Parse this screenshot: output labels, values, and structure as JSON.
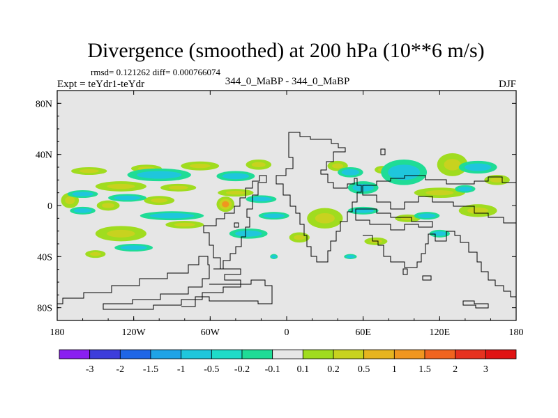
{
  "chart_data": {
    "type": "heatmap",
    "title": "Divergence (smoothed) at 200 hPa (10**6 m/s)",
    "stats": "rmsd= 0.121262 diff= 0.000766074",
    "experiment": "Expt = teYdr1-teYdr",
    "case": "344_0_MaBP - 344_0_MaBP",
    "season": "DJF",
    "x_range": [
      -180,
      180
    ],
    "y_range": [
      -90,
      90
    ],
    "x_ticks": [
      {
        "value": -180,
        "label": "180"
      },
      {
        "value": -120,
        "label": "120W"
      },
      {
        "value": -60,
        "label": "60W"
      },
      {
        "value": 0,
        "label": "0"
      },
      {
        "value": 60,
        "label": "60E"
      },
      {
        "value": 120,
        "label": "120E"
      },
      {
        "value": 180,
        "label": "180"
      }
    ],
    "y_ticks": [
      {
        "value": 80,
        "label": "80N"
      },
      {
        "value": 40,
        "label": "40N"
      },
      {
        "value": 0,
        "label": "0"
      },
      {
        "value": -40,
        "label": "40S"
      },
      {
        "value": -80,
        "label": "80S"
      }
    ],
    "colorbar": {
      "levels": [
        "-3",
        "-2",
        "-1.5",
        "-1",
        "-0.5",
        "-0.2",
        "-0.1",
        "0.1",
        "0.2",
        "0.5",
        "1",
        "1.5",
        "2",
        "3"
      ],
      "colors": [
        "#8a1ff0",
        "#3d3ddb",
        "#1f66e6",
        "#1fa3e6",
        "#1fc6dc",
        "#1fdcc8",
        "#1fdc96",
        "#e6e6e6",
        "#a0dc1f",
        "#c8d21f",
        "#e6b41f",
        "#f0961f",
        "#f0641f",
        "#e6321f",
        "#e01414"
      ]
    },
    "features": [
      {
        "lon": -155,
        "lat": 27,
        "rx": 14,
        "ry": 3,
        "level": "positive"
      },
      {
        "lon": -110,
        "lat": 29,
        "rx": 12,
        "ry": 3,
        "level": "positive"
      },
      {
        "lon": -68,
        "lat": 31,
        "rx": 15,
        "ry": 3.5,
        "level": "positive"
      },
      {
        "lon": -22,
        "lat": 32,
        "rx": 10,
        "ry": 4,
        "level": "positive"
      },
      {
        "lon": 40,
        "lat": 31,
        "rx": 8,
        "ry": 4,
        "level": "positive"
      },
      {
        "lon": 75,
        "lat": 28,
        "rx": 6,
        "ry": 3,
        "level": "positive"
      },
      {
        "lon": 130,
        "lat": 32,
        "rx": 12,
        "ry": 9,
        "level": "positive"
      },
      {
        "lon": 165,
        "lat": 20,
        "rx": 10,
        "ry": 4,
        "level": "positive"
      },
      {
        "lon": -130,
        "lat": 15,
        "rx": 20,
        "ry": 4,
        "level": "positive"
      },
      {
        "lon": -85,
        "lat": 14,
        "rx": 14,
        "ry": 3,
        "level": "positive"
      },
      {
        "lon": -40,
        "lat": 10,
        "rx": 14,
        "ry": 3,
        "level": "positive"
      },
      {
        "lon": 120,
        "lat": 10,
        "rx": 20,
        "ry": 4,
        "level": "positive"
      },
      {
        "lon": -170,
        "lat": 4,
        "rx": 7,
        "ry": 6,
        "level": "positive"
      },
      {
        "lon": -140,
        "lat": 0,
        "rx": 9,
        "ry": 4,
        "level": "positive"
      },
      {
        "lon": -100,
        "lat": 4,
        "rx": 12,
        "ry": 3.5,
        "level": "positive"
      },
      {
        "lon": -48,
        "lat": 1,
        "rx": 7,
        "ry": 6,
        "level": "strong"
      },
      {
        "lon": 30,
        "lat": -10,
        "rx": 14,
        "ry": 8,
        "level": "positive"
      },
      {
        "lon": 95,
        "lat": -10,
        "rx": 10,
        "ry": 3,
        "level": "positive"
      },
      {
        "lon": 150,
        "lat": -4,
        "rx": 15,
        "ry": 5,
        "level": "positive"
      },
      {
        "lon": -130,
        "lat": -22,
        "rx": 20,
        "ry": 6,
        "level": "positive"
      },
      {
        "lon": -80,
        "lat": -15,
        "rx": 15,
        "ry": 3,
        "level": "positive"
      },
      {
        "lon": 10,
        "lat": -25,
        "rx": 8,
        "ry": 4,
        "level": "positive"
      },
      {
        "lon": 70,
        "lat": -28,
        "rx": 9,
        "ry": 3,
        "level": "positive"
      },
      {
        "lon": -150,
        "lat": -38,
        "rx": 8,
        "ry": 3,
        "level": "positive"
      },
      {
        "lon": -100,
        "lat": 24,
        "rx": 25,
        "ry": 5,
        "level": "negative"
      },
      {
        "lon": -40,
        "lat": 23,
        "rx": 15,
        "ry": 4,
        "level": "negative"
      },
      {
        "lon": 50,
        "lat": 26,
        "rx": 10,
        "ry": 4,
        "level": "negative"
      },
      {
        "lon": 92,
        "lat": 26,
        "rx": 18,
        "ry": 10,
        "level": "negative"
      },
      {
        "lon": 150,
        "lat": 30,
        "rx": 15,
        "ry": 5,
        "level": "negative"
      },
      {
        "lon": -160,
        "lat": 9,
        "rx": 12,
        "ry": 3,
        "level": "negative"
      },
      {
        "lon": -125,
        "lat": 6,
        "rx": 15,
        "ry": 3,
        "level": "negative"
      },
      {
        "lon": -20,
        "lat": 5,
        "rx": 12,
        "ry": 3,
        "level": "negative"
      },
      {
        "lon": 60,
        "lat": 14,
        "rx": 12,
        "ry": 5,
        "level": "negative"
      },
      {
        "lon": 140,
        "lat": 13,
        "rx": 8,
        "ry": 3,
        "level": "negative"
      },
      {
        "lon": -160,
        "lat": -4,
        "rx": 10,
        "ry": 3,
        "level": "negative"
      },
      {
        "lon": -90,
        "lat": -8,
        "rx": 25,
        "ry": 3.5,
        "level": "negative"
      },
      {
        "lon": -10,
        "lat": -8,
        "rx": 12,
        "ry": 3,
        "level": "negative"
      },
      {
        "lon": 60,
        "lat": -4,
        "rx": 12,
        "ry": 3,
        "level": "negative"
      },
      {
        "lon": 110,
        "lat": -8,
        "rx": 10,
        "ry": 3,
        "level": "negative"
      },
      {
        "lon": -120,
        "lat": -33,
        "rx": 15,
        "ry": 3,
        "level": "negative"
      },
      {
        "lon": -30,
        "lat": -22,
        "rx": 15,
        "ry": 4,
        "level": "negative"
      },
      {
        "lon": -10,
        "lat": -40,
        "rx": 3,
        "ry": 2,
        "level": "negative"
      },
      {
        "lon": 50,
        "lat": -40,
        "rx": 5,
        "ry": 2,
        "level": "negative"
      },
      {
        "lon": 120,
        "lat": -22,
        "rx": 8,
        "ry": 3,
        "level": "negative"
      }
    ]
  }
}
